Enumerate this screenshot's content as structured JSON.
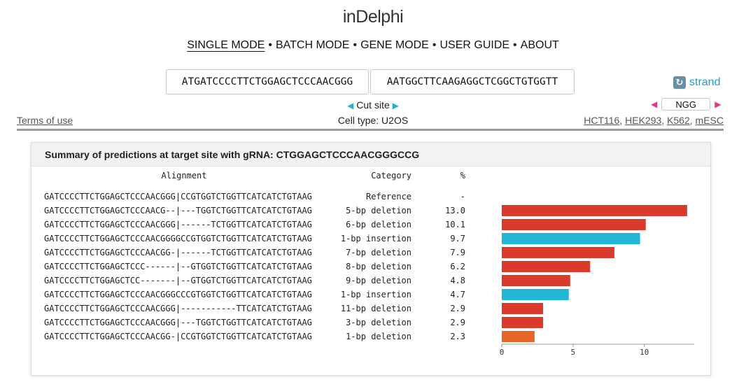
{
  "app": {
    "title": "inDelphi"
  },
  "nav": {
    "items": [
      "SINGLE MODE",
      "BATCH MODE",
      "GENE MODE",
      "USER GUIDE",
      "ABOUT"
    ],
    "separator": "•"
  },
  "input": {
    "left_seq": "ATGATCCCCTTCTGGAGCTCCCAACGGG",
    "right_seq": "AATGGCTTCAAGAGGCTCGGCTGTGGTT",
    "cut_site_label": "Cut site",
    "strand_label": "strand",
    "pam_value": "NGG"
  },
  "footer_bar": {
    "terms_label": "Terms of use",
    "cell_type_label": "Cell type: U2OS",
    "cell_lines": [
      "HCT116",
      "HEK293",
      "K562",
      "mESC"
    ]
  },
  "panel": {
    "title": "Summary of predictions at target site with gRNA: CTGGAGCTCCCAACGGGCCG",
    "headers": {
      "alignment": "Alignment",
      "category": "Category",
      "percent": "%"
    },
    "reference_row": {
      "alignment": "GATCCCCTTCTGGAGCTCCCAACGGG|CCGTGGTCTGGTTCATCATCTGTAAG",
      "category": "Reference",
      "percent": "-"
    }
  },
  "colors": {
    "deletion": "#d93a2b",
    "insertion": "#22b5d6",
    "small_deletion": "#e8652a",
    "axis": "#999999"
  },
  "chart_data": {
    "type": "bar",
    "orientation": "horizontal",
    "categories": [
      "GATCCCCTTCTGGAGCTCCCAACG--|---TGGTCTGGTTCATCATCTGTAAG",
      "GATCCCCTTCTGGAGCTCCCAACGGG|------TCTGGTTCATCATCTGTAAG",
      "GATCCCCTTCTGGAGCTCCCAACGGGGCCGTGGTCTGGTTCATCATCTGTAAG",
      "GATCCCCTTCTGGAGCTCCCAACGG-|------TCTGGTTCATCATCTGTAAG",
      "GATCCCCTTCTGGAGCTCCC------|--GTGGTCTGGTTCATCATCTGTAAG",
      "GATCCCCTTCTGGAGCTCC-------|--GTGGTCTGGTTCATCATCTGTAAG",
      "GATCCCCTTCTGGAGCTCCCAACGGGCCCGTGGTCTGGTTCATCATCTGTAAG",
      "GATCCCCTTCTGGAGCTCCCAACGGG|-----------TTCATCATCTGTAAG",
      "GATCCCCTTCTGGAGCTCCCAACGGG|---TGGTCTGGTTCATCATCTGTAAG",
      "GATCCCCTTCTGGAGCTCCCAACGG-|CCGTGGTCTGGTTCATCATCTGTAAG"
    ],
    "series": [
      {
        "values": [
          13.0,
          10.1,
          9.7,
          7.9,
          6.2,
          4.8,
          4.7,
          2.9,
          2.9,
          2.3
        ]
      }
    ],
    "row_categories": [
      "5-bp deletion",
      "6-bp deletion",
      "1-bp insertion",
      "7-bp deletion",
      "8-bp deletion",
      "9-bp deletion",
      "1-bp insertion",
      "11-bp deletion",
      "3-bp deletion",
      "1-bp deletion"
    ],
    "percent_labels": [
      "13.0",
      "10.1",
      "9.7",
      "7.9",
      "6.2",
      "4.8",
      "4.7",
      "2.9",
      "2.9",
      "2.3"
    ],
    "bar_colors": [
      "deletion",
      "deletion",
      "insertion",
      "deletion",
      "deletion",
      "deletion",
      "insertion",
      "deletion",
      "deletion",
      "small_deletion"
    ],
    "xlim": [
      0,
      13.5
    ],
    "xticks": [
      0,
      5,
      10
    ],
    "grid": false,
    "legend": "none"
  }
}
